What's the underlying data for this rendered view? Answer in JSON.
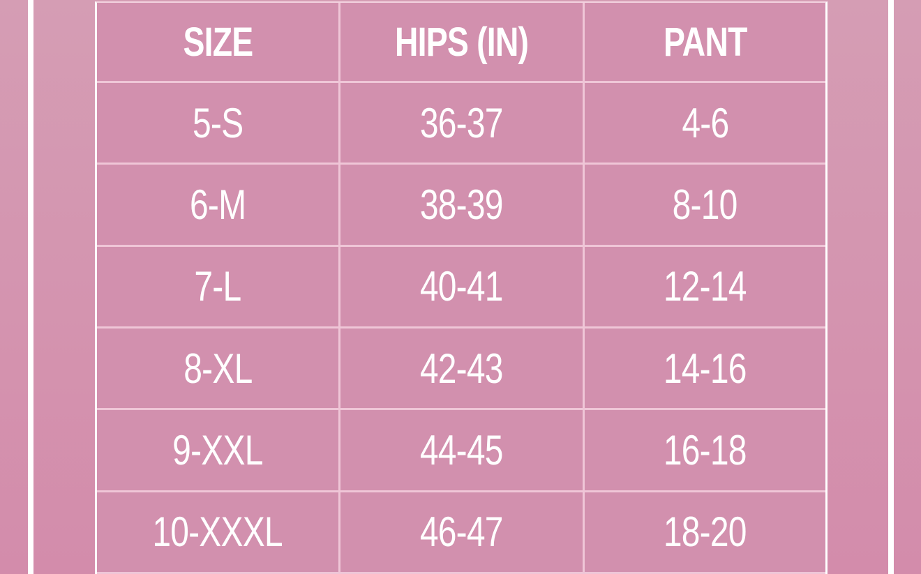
{
  "table": {
    "headers": [
      "SIZE",
      "HIPS (IN)",
      "PANT"
    ],
    "rows": [
      [
        "5-S",
        "36-37",
        "4-6"
      ],
      [
        "6-M",
        "38-39",
        "8-10"
      ],
      [
        "7-L",
        "40-41",
        "12-14"
      ],
      [
        "8-XL",
        "42-43",
        "14-16"
      ],
      [
        "9-XXL",
        "44-45",
        "16-18"
      ],
      [
        "10-XXXL",
        "46-47",
        "18-20"
      ]
    ]
  },
  "colors": {
    "background": "#d497b0",
    "cell": "#d290ae",
    "grid": "#efc6d7",
    "text": "#ffffff"
  }
}
